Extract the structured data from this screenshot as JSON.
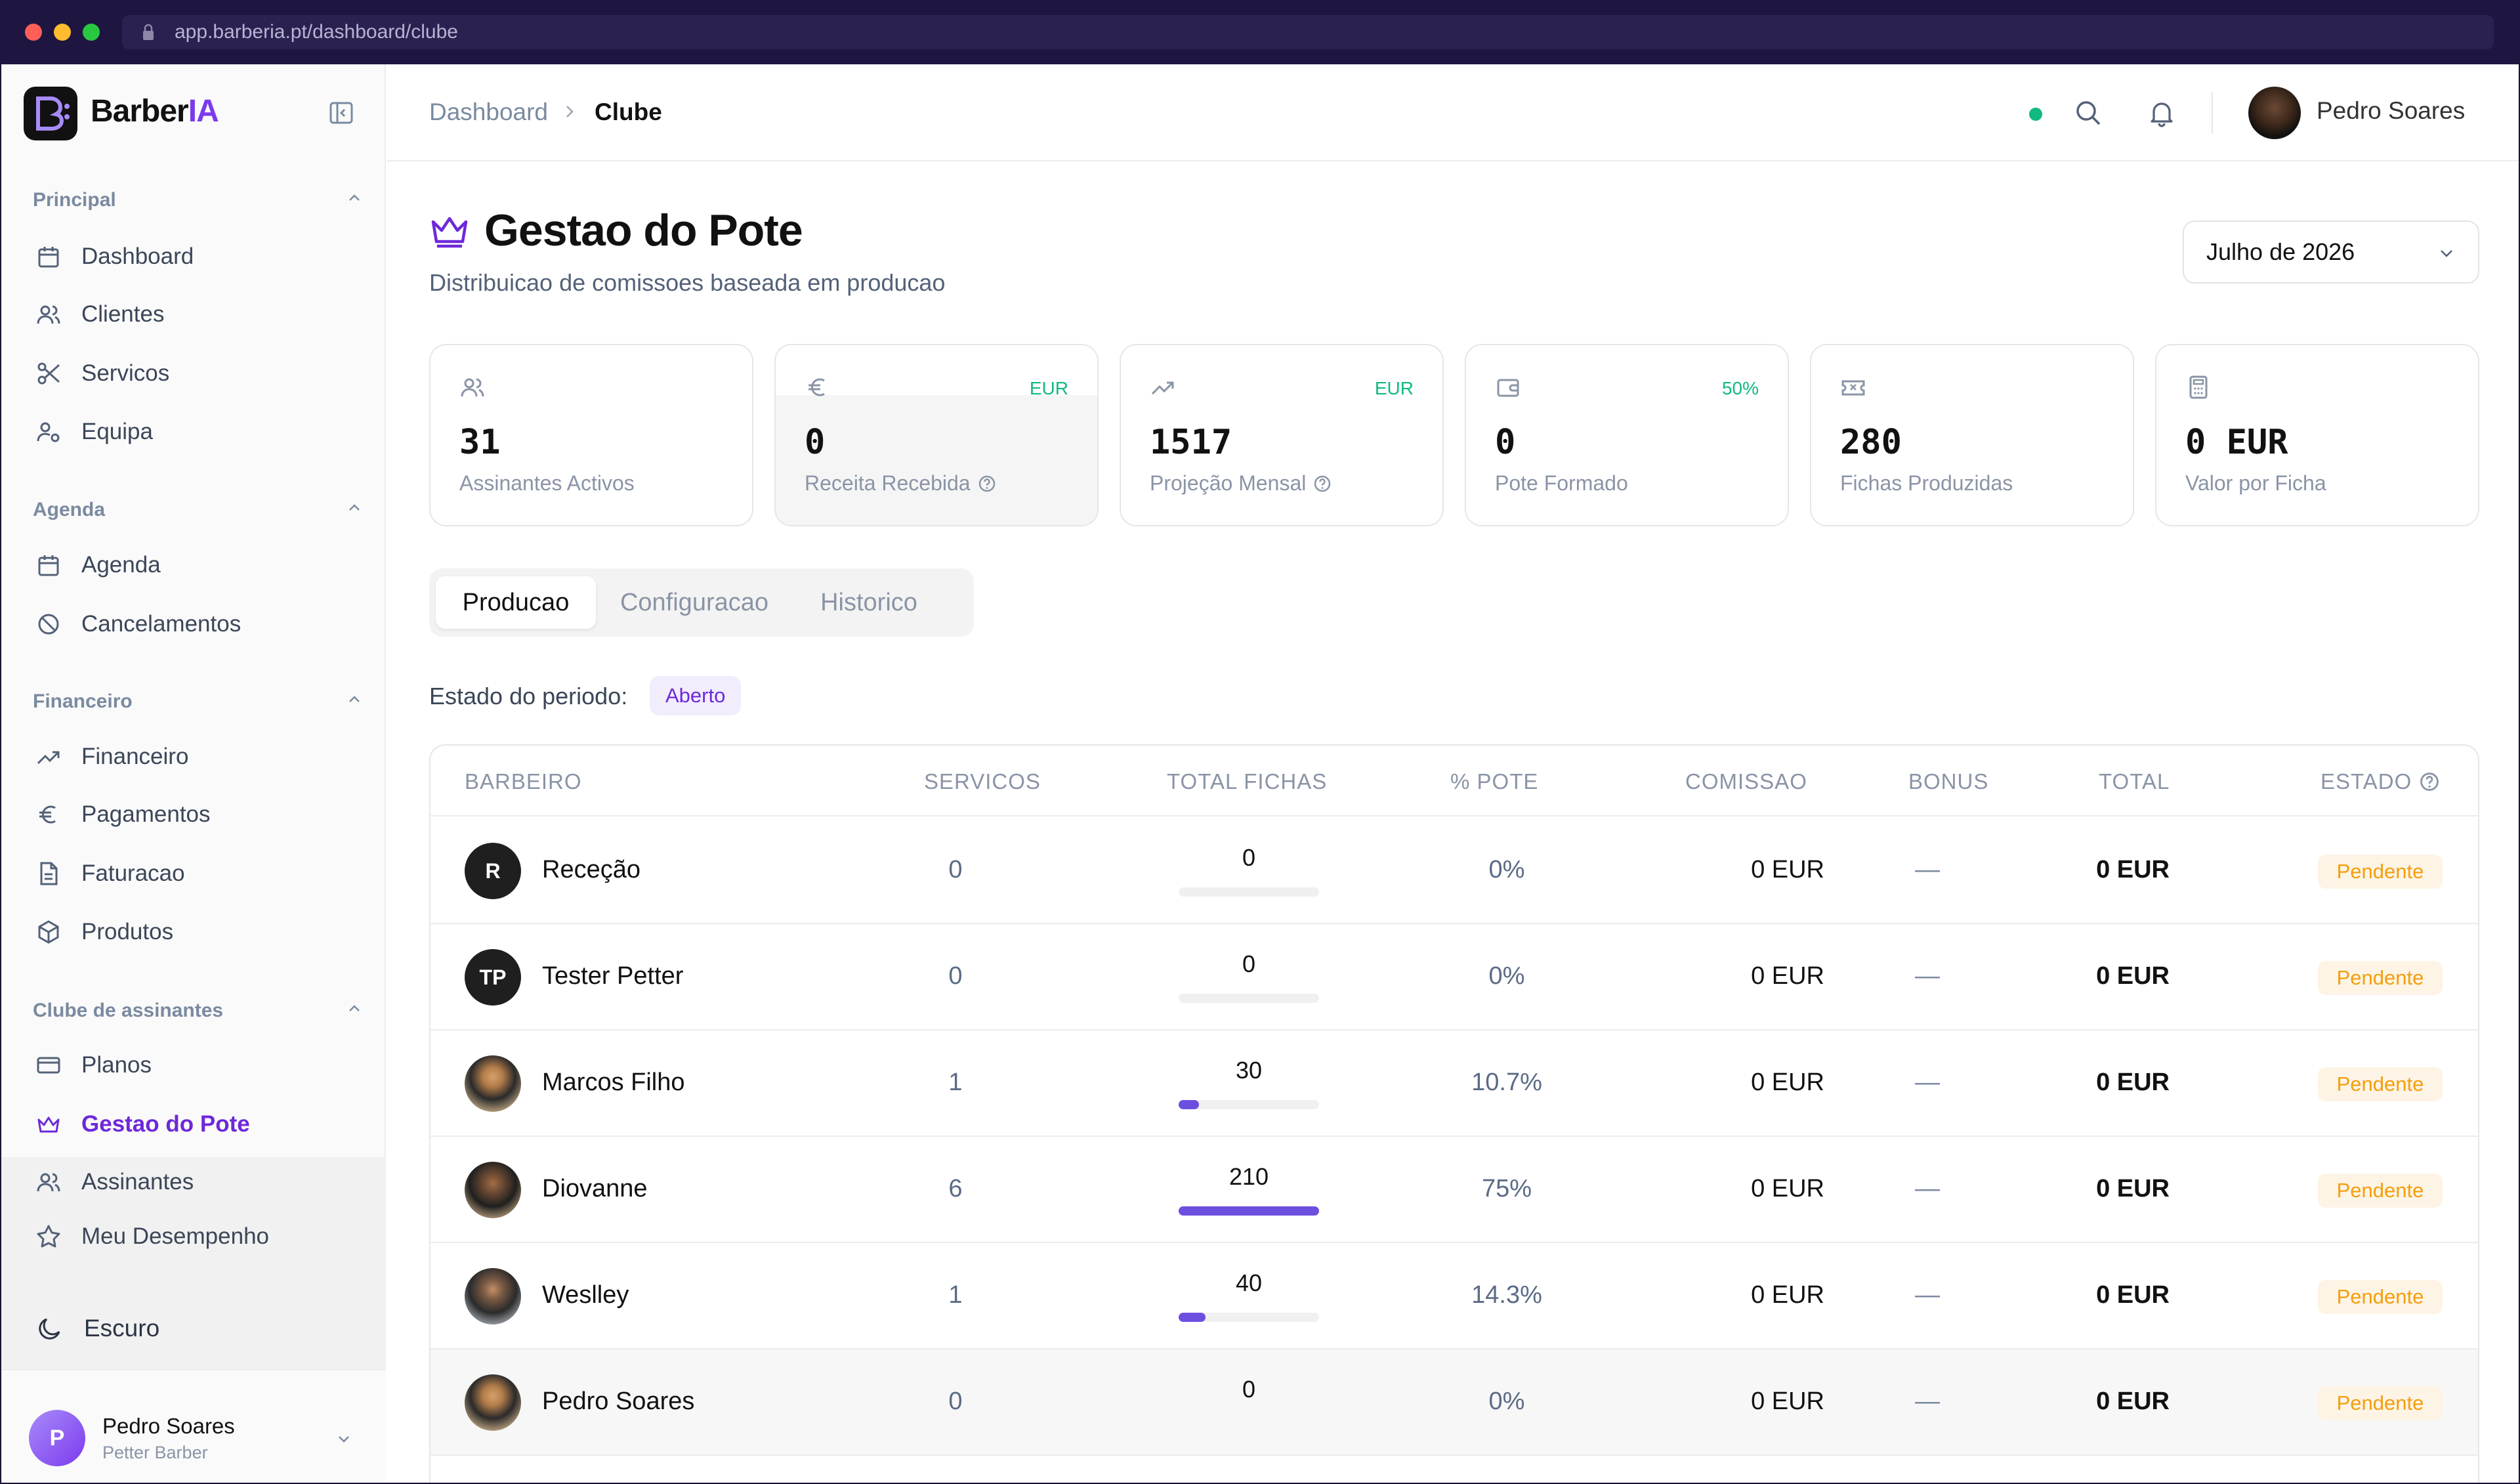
{
  "browser": {
    "url": "app.barberia.pt/dashboard/clube"
  },
  "brand": {
    "name_main": "Barber",
    "name_accent": "IA"
  },
  "sidebar": {
    "sections": [
      {
        "title": "Principal",
        "items": [
          "Dashboard",
          "Clientes",
          "Servicos",
          "Equipa"
        ]
      },
      {
        "title": "Agenda",
        "items": [
          "Agenda",
          "Cancelamentos"
        ]
      },
      {
        "title": "Financeiro",
        "items": [
          "Financeiro",
          "Pagamentos",
          "Faturacao",
          "Produtos"
        ]
      },
      {
        "title": "Clube de assinantes",
        "items": [
          "Planos",
          "Gestao do Pote",
          "Assinantes",
          "Meu Desempenho"
        ]
      }
    ],
    "theme_label": "Escuro",
    "user": {
      "initial": "P",
      "name": "Pedro Soares",
      "role": "Petter Barber"
    }
  },
  "topbar": {
    "crumb_root": "Dashboard",
    "crumb_current": "Clube",
    "user_name": "Pedro Soares"
  },
  "page": {
    "title": "Gestao do Pote",
    "subtitle": "Distribuicao de comissoes baseada em producao",
    "period": "Julho de 2026"
  },
  "cards": [
    {
      "value": "31",
      "label": "Assinantes Activos",
      "tag": ""
    },
    {
      "value": "0",
      "label": "Receita Recebida",
      "tag": "EUR"
    },
    {
      "value": "1517",
      "label": "Projeção Mensal",
      "tag": "EUR"
    },
    {
      "value": "0",
      "label": "Pote Formado",
      "tag": "50%"
    },
    {
      "value": "280",
      "label": "Fichas Produzidas",
      "tag": ""
    },
    {
      "value": "0 EUR",
      "label": "Valor por Ficha",
      "tag": ""
    }
  ],
  "tabs": [
    "Producao",
    "Configuracao",
    "Historico"
  ],
  "status": {
    "label": "Estado do periodo:",
    "value": "Aberto"
  },
  "table": {
    "headers": [
      "BARBEIRO",
      "SERVICOS",
      "TOTAL FICHAS",
      "% POTE",
      "COMISSAO",
      "BONUS",
      "TOTAL",
      "ESTADO"
    ],
    "rows": [
      {
        "initials": "R",
        "name": "Receção",
        "servicos": "0",
        "fichas": "0",
        "fichas_pct": 0,
        "pote": "0%",
        "comissao": "0 EUR",
        "bonus": "—",
        "total": "0 EUR",
        "estado": "Pendente"
      },
      {
        "initials": "TP",
        "name": "Tester Petter",
        "servicos": "0",
        "fichas": "0",
        "fichas_pct": 0,
        "pote": "0%",
        "comissao": "0 EUR",
        "bonus": "—",
        "total": "0 EUR",
        "estado": "Pendente"
      },
      {
        "initials": "",
        "name": "Marcos Filho",
        "servicos": "1",
        "fichas": "30",
        "fichas_pct": 14.3,
        "pote": "10.7%",
        "comissao": "0 EUR",
        "bonus": "—",
        "total": "0 EUR",
        "estado": "Pendente"
      },
      {
        "initials": "",
        "name": "Diovanne",
        "servicos": "6",
        "fichas": "210",
        "fichas_pct": 100,
        "pote": "75%",
        "comissao": "0 EUR",
        "bonus": "—",
        "total": "0 EUR",
        "estado": "Pendente"
      },
      {
        "initials": "",
        "name": "Weslley",
        "servicos": "1",
        "fichas": "40",
        "fichas_pct": 19,
        "pote": "14.3%",
        "comissao": "0 EUR",
        "bonus": "—",
        "total": "0 EUR",
        "estado": "Pendente"
      },
      {
        "initials": "",
        "name": "Pedro Soares",
        "servicos": "0",
        "fichas": "0",
        "fichas_pct": 0,
        "pote": "0%",
        "comissao": "0 EUR",
        "bonus": "—",
        "total": "0 EUR",
        "estado": "Pendente"
      }
    ]
  },
  "colors": {
    "accent": "#6d28d9",
    "positive": "#10b981",
    "pending": "#f59e0b"
  }
}
